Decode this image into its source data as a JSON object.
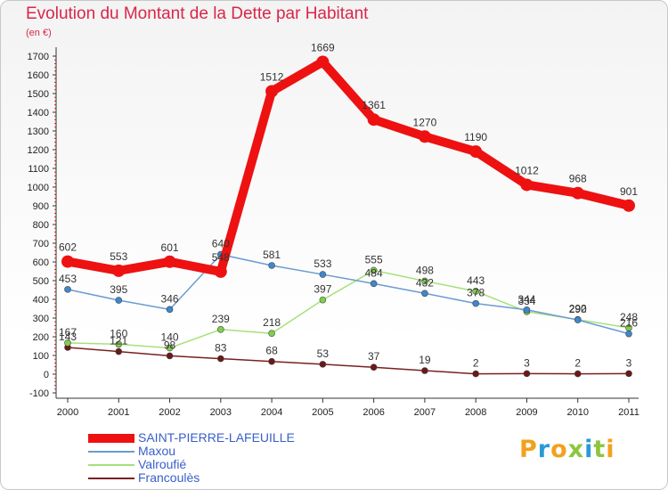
{
  "header": {
    "title": "Evolution du Montant de la Dette par Habitant",
    "subtitle": "(en €)"
  },
  "brand": {
    "letters": [
      "P",
      "r",
      "o",
      "x",
      "i",
      "t",
      "i"
    ],
    "colors": [
      "#f2a11e",
      "#2b9ad6",
      "#f2a11e",
      "#8cc63f",
      "#2b9ad6",
      "#8cc63f",
      "#f2a11e"
    ]
  },
  "chart_data": {
    "type": "line",
    "title": "Evolution du Montant de la Dette par Habitant",
    "subtitle": "(en €)",
    "xlabel": "",
    "ylabel": "",
    "categories": [
      "2000",
      "2001",
      "2002",
      "2003",
      "2004",
      "2005",
      "2006",
      "2007",
      "2008",
      "2009",
      "2010",
      "2011"
    ],
    "ylim": [
      -100,
      1700
    ],
    "yticks": [
      -100,
      0,
      100,
      200,
      300,
      400,
      500,
      600,
      700,
      800,
      900,
      1000,
      1100,
      1200,
      1300,
      1400,
      1500,
      1600,
      1700
    ],
    "grid": false,
    "legend_position": "bottom-left",
    "series": [
      {
        "name": "SAINT-PIERRE-LAFEUILLE",
        "values": [
          602,
          553,
          601,
          548,
          1512,
          1669,
          1361,
          1270,
          1190,
          1012,
          968,
          901
        ],
        "color": "#ee1111",
        "marker": "#ee1111"
      },
      {
        "name": "Maxou",
        "values": [
          453,
          395,
          346,
          640,
          581,
          533,
          484,
          432,
          378,
          344,
          290,
          216
        ],
        "color": "#6c9bd2",
        "marker": "#3d87cf"
      },
      {
        "name": "Valroufié",
        "values": [
          167,
          160,
          140,
          239,
          218,
          397,
          555,
          498,
          443,
          334,
          292,
          248
        ],
        "color": "#a6e07c",
        "marker": "#7ed04a"
      },
      {
        "name": "Francoulès",
        "values": [
          143,
          121,
          98,
          83,
          68,
          53,
          37,
          19,
          2,
          3,
          2,
          3
        ],
        "color": "#7a2020",
        "marker": "#6b1818"
      }
    ],
    "data_labels": [
      [
        "602",
        "553",
        "601",
        "548",
        "1512",
        "1669",
        "1361",
        "1270",
        "1190",
        "1012",
        "968",
        "901"
      ],
      [
        "453",
        "395",
        "346",
        "640",
        "581",
        "533",
        "484",
        "432",
        "378",
        "344",
        "290",
        "216"
      ],
      [
        "167",
        "160",
        "140",
        "239",
        "218",
        "397",
        "555",
        "498",
        "443",
        "334",
        "292",
        "248"
      ],
      [
        "143",
        "121",
        "98",
        "83",
        "68",
        "53",
        "37",
        "19",
        "2",
        "3",
        "2",
        "3"
      ]
    ]
  }
}
